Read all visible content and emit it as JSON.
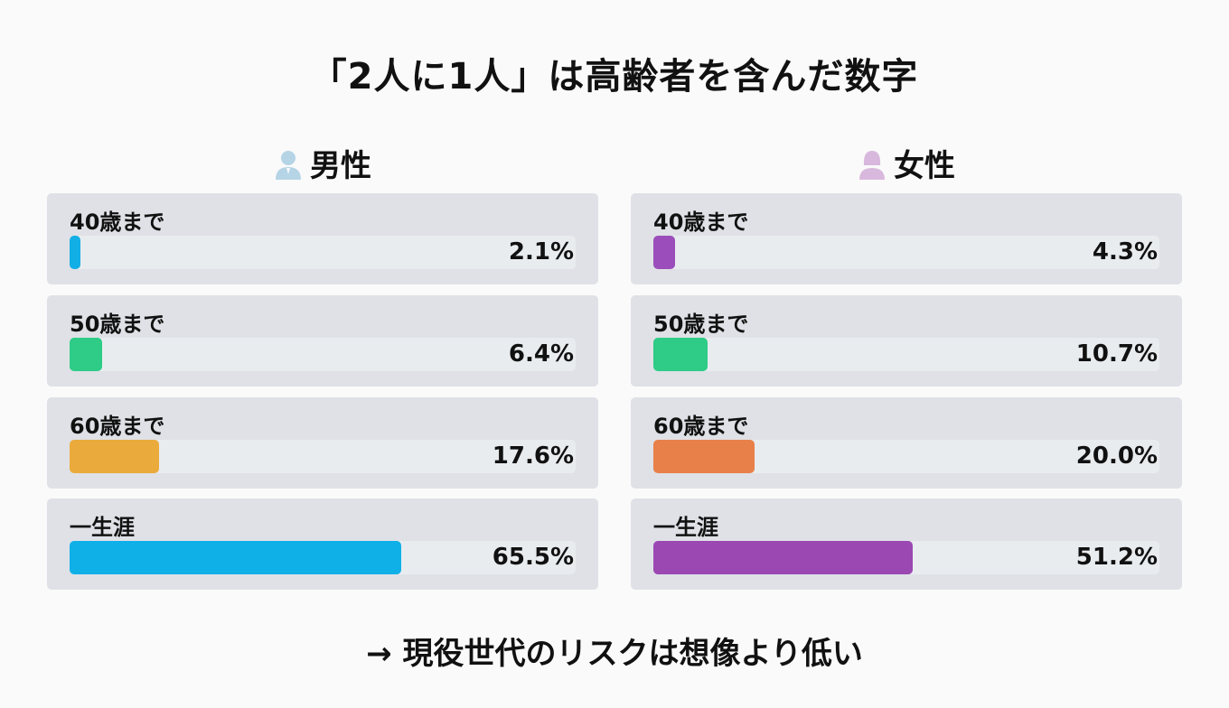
{
  "title": "「2人に1人」は高齢者を含んだ数字",
  "footer": "→ 現役世代のリスクは想像より低い",
  "chart_data": {
    "type": "bar",
    "title": "「2人に1人」は高齢者を含んだ数字",
    "categories": [
      "40歳まで",
      "50歳まで",
      "60歳まで",
      "一生涯"
    ],
    "xlim": [
      0,
      100
    ],
    "panels": [
      {
        "name": "男性",
        "icon": "male-person-icon",
        "icon_color": "#b5d4e6",
        "values": [
          2.1,
          6.4,
          17.6,
          65.5
        ],
        "labels": [
          "2.1%",
          "6.4%",
          "17.6%",
          "65.5%"
        ],
        "colors": [
          "#12aee6",
          "#2ecc87",
          "#eaab3c",
          "#0fb0e8"
        ]
      },
      {
        "name": "女性",
        "icon": "female-person-icon",
        "icon_color": "#d9b8dd",
        "values": [
          4.3,
          10.7,
          20.0,
          51.2
        ],
        "labels": [
          "4.3%",
          "10.7%",
          "20.0%",
          "51.2%"
        ],
        "colors": [
          "#9b4dbb",
          "#2ecc87",
          "#e8804a",
          "#9b48b3"
        ]
      }
    ]
  }
}
